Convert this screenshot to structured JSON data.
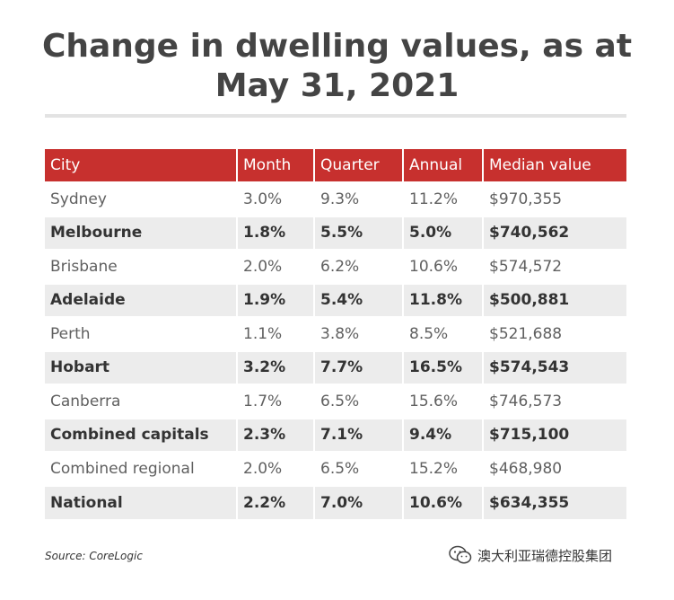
{
  "chart_data": {
    "type": "table",
    "title_line1": "Change in dwelling values, as at",
    "title_line2": "May 31, 2021",
    "columns": [
      "City",
      "Month",
      "Quarter",
      "Annual",
      "Median value"
    ],
    "rows": [
      [
        "Sydney",
        "3.0%",
        "9.3%",
        "11.2%",
        "$970,355"
      ],
      [
        "Melbourne",
        "1.8%",
        "5.5%",
        "5.0%",
        "$740,562"
      ],
      [
        "Brisbane",
        "2.0%",
        "6.2%",
        "10.6%",
        "$574,572"
      ],
      [
        "Adelaide",
        "1.9%",
        "5.4%",
        "11.8%",
        "$500,881"
      ],
      [
        "Perth",
        "1.1%",
        "3.8%",
        "8.5%",
        "$521,688"
      ],
      [
        "Hobart",
        "3.2%",
        "7.7%",
        "16.5%",
        "$574,543"
      ],
      [
        "Canberra",
        "1.7%",
        "6.5%",
        "15.6%",
        "$746,573"
      ],
      [
        "Combined capitals",
        "2.3%",
        "7.1%",
        "9.4%",
        "$715,100"
      ],
      [
        "Combined regional",
        "2.0%",
        "6.5%",
        "15.2%",
        "$468,980"
      ],
      [
        "National",
        "2.2%",
        "7.0%",
        "10.6%",
        "$634,355"
      ]
    ],
    "source": "Source: CoreLogic",
    "header_color": "#c7302e",
    "alt_row_color": "#ececec"
  },
  "watermark": {
    "icon": "wechat-icon",
    "text": "澳大利亚瑞德控股集团"
  }
}
